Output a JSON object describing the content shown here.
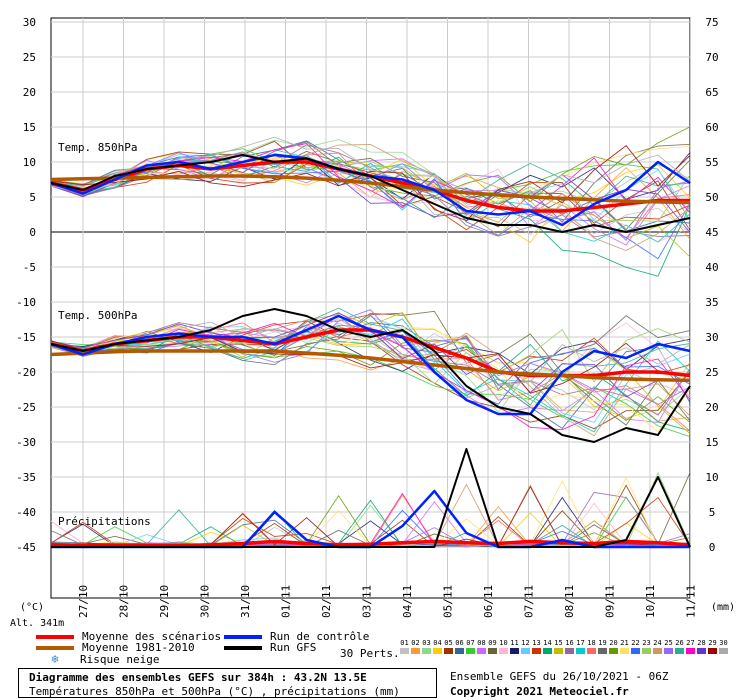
{
  "chart_data": {
    "type": "line",
    "title": "Diagramme des ensembles GEFS sur 384h : 43.2N 13.5E",
    "subtitle": "Températures 850hPa et 500hPa (°C) , précipitations (mm)",
    "left_axis": {
      "unit": "(°C)",
      "ticks": [
        30,
        25,
        20,
        15,
        10,
        5,
        0,
        -5,
        -10,
        -15,
        -20,
        -25,
        -30,
        -35,
        -40,
        -45
      ],
      "ylim": [
        -45,
        30
      ]
    },
    "right_axis": {
      "unit": "(mm)",
      "ticks": [
        75,
        70,
        65,
        60,
        55,
        50,
        45,
        40,
        35,
        30,
        25,
        20,
        15,
        10,
        5,
        0
      ],
      "ylim": [
        0,
        75
      ]
    },
    "altitude": "Alt. 341m",
    "x_labels": [
      "27/10",
      "28/10",
      "29/10",
      "30/10",
      "31/10",
      "01/11",
      "02/11",
      "03/11",
      "04/11",
      "05/11",
      "06/11",
      "07/11",
      "08/11",
      "09/11",
      "10/11",
      "11/11"
    ],
    "panel_labels": {
      "t850": "Temp. 850hPa",
      "t500": "Temp. 500hPa",
      "precip": "Précipitations"
    },
    "grid": true,
    "series": [
      {
        "name": "Moyenne des scénarios",
        "color": "#ff0000",
        "t850": [
          7,
          6,
          7.5,
          9,
          9.5,
          9,
          9.5,
          10,
          10,
          9,
          8,
          7,
          6,
          4.5,
          3.5,
          3,
          3,
          3.5,
          4,
          4.5,
          4.5
        ],
        "t500": [
          -16,
          -17,
          -16,
          -15.5,
          -15,
          -15,
          -15.5,
          -16,
          -15,
          -14,
          -14,
          -15,
          -16.5,
          -18,
          -20,
          -20.5,
          -20.5,
          -20.5,
          -20,
          -20,
          -20.5
        ],
        "precip": [
          0.3,
          0.2,
          0.2,
          0.2,
          0.2,
          0.3,
          0.5,
          0.8,
          0.5,
          0.3,
          0.4,
          0.6,
          0.8,
          0.6,
          0.5,
          0.8,
          0.6,
          0.5,
          0.8,
          0.6,
          0.3
        ]
      },
      {
        "name": "Moyenne 1981-2010",
        "color": "#b35900",
        "t850": [
          7.5,
          7.6,
          7.7,
          7.8,
          7.9,
          8,
          8,
          7.9,
          7.7,
          7.4,
          7,
          6.5,
          6,
          5.6,
          5.3,
          5,
          4.8,
          4.6,
          4.4,
          4.3,
          4.2
        ],
        "t500": [
          -17.5,
          -17.3,
          -17.1,
          -17,
          -17,
          -17,
          -17,
          -17,
          -17.3,
          -17.6,
          -18,
          -18.5,
          -19,
          -19.5,
          -20,
          -20.3,
          -20.5,
          -20.8,
          -21,
          -21.1,
          -21.2
        ]
      },
      {
        "name": "Run de contrôle",
        "color": "#0022ff",
        "t850": [
          7,
          5.5,
          7.5,
          9.5,
          10,
          9,
          10,
          11,
          10.5,
          9,
          8,
          7.5,
          6,
          3,
          2.5,
          3,
          1,
          4,
          6,
          10,
          7
        ],
        "t500": [
          -16,
          -17.5,
          -16,
          -15,
          -14.5,
          -15,
          -15,
          -16,
          -14,
          -12,
          -14,
          -15,
          -20,
          -24,
          -26,
          -26,
          -20,
          -17,
          -18,
          -16,
          -17
        ],
        "precip": [
          0,
          0,
          0,
          0,
          0,
          0,
          0,
          5,
          1,
          0,
          0,
          3,
          8,
          2,
          0,
          0,
          1,
          0,
          0,
          0,
          0
        ]
      },
      {
        "name": "Run GFS",
        "color": "#000000",
        "t850": [
          7,
          6,
          8,
          9,
          9.5,
          10,
          11,
          10,
          10.5,
          9,
          8,
          6,
          4,
          2,
          1,
          1,
          0,
          1,
          0,
          1,
          2
        ],
        "t500": [
          -16,
          -17,
          -16,
          -15.5,
          -15,
          -14,
          -12,
          -11,
          -12,
          -14,
          -15,
          -14,
          -17,
          -22,
          -25,
          -26,
          -29,
          -30,
          -28,
          -29,
          -22
        ],
        "precip": [
          0,
          0,
          0,
          0,
          0,
          0,
          0,
          0,
          0,
          0,
          0,
          0,
          0,
          14,
          0,
          0,
          0,
          0,
          1,
          10,
          0
        ]
      }
    ],
    "legend": {
      "mean": "Moyenne des scénarios",
      "clim": "Moyenne 1981-2010",
      "control": "Run de contrôle",
      "gfs": "Run GFS",
      "snow": "Risque neige",
      "perts_title": "30 Perts."
    },
    "perturbations": [
      {
        "name": "01",
        "color": "#c1c1c1"
      },
      {
        "name": "02",
        "color": "#ff9933"
      },
      {
        "name": "03",
        "color": "#8cd98c"
      },
      {
        "name": "04",
        "color": "#ffcc00"
      },
      {
        "name": "05",
        "color": "#993300"
      },
      {
        "name": "06",
        "color": "#336699"
      },
      {
        "name": "07",
        "color": "#33cc33"
      },
      {
        "name": "08",
        "color": "#cc66ff"
      },
      {
        "name": "09",
        "color": "#666633"
      },
      {
        "name": "10",
        "color": "#ffb3d9"
      },
      {
        "name": "11",
        "color": "#1a1a66"
      },
      {
        "name": "12",
        "color": "#66ccff"
      },
      {
        "name": "13",
        "color": "#cc3300"
      },
      {
        "name": "14",
        "color": "#00a86b"
      },
      {
        "name": "15",
        "color": "#bfbf00"
      },
      {
        "name": "16",
        "color": "#996699"
      },
      {
        "name": "17",
        "color": "#00cccc"
      },
      {
        "name": "18",
        "color": "#ff6666"
      },
      {
        "name": "19",
        "color": "#666666"
      },
      {
        "name": "20",
        "color": "#669900"
      },
      {
        "name": "21",
        "color": "#ffe066"
      },
      {
        "name": "22",
        "color": "#3366ff"
      },
      {
        "name": "23",
        "color": "#99cc66"
      },
      {
        "name": "24",
        "color": "#cc9966"
      },
      {
        "name": "25",
        "color": "#9966ff"
      },
      {
        "name": "26",
        "color": "#33aa99"
      },
      {
        "name": "27",
        "color": "#ff00cc"
      },
      {
        "name": "28",
        "color": "#6633cc"
      },
      {
        "name": "29",
        "color": "#990000"
      },
      {
        "name": "30",
        "color": "#aaaaaa"
      }
    ]
  },
  "footer": {
    "title": "Diagramme des ensembles GEFS sur 384h : 43.2N 13.5E",
    "subtitle": "Températures 850hPa et 500hPa (°C) , précipitations (mm)",
    "run": "Ensemble GEFS du 26/10/2021 - 06Z",
    "copyright": "Copyright 2021 Meteociel.fr"
  }
}
